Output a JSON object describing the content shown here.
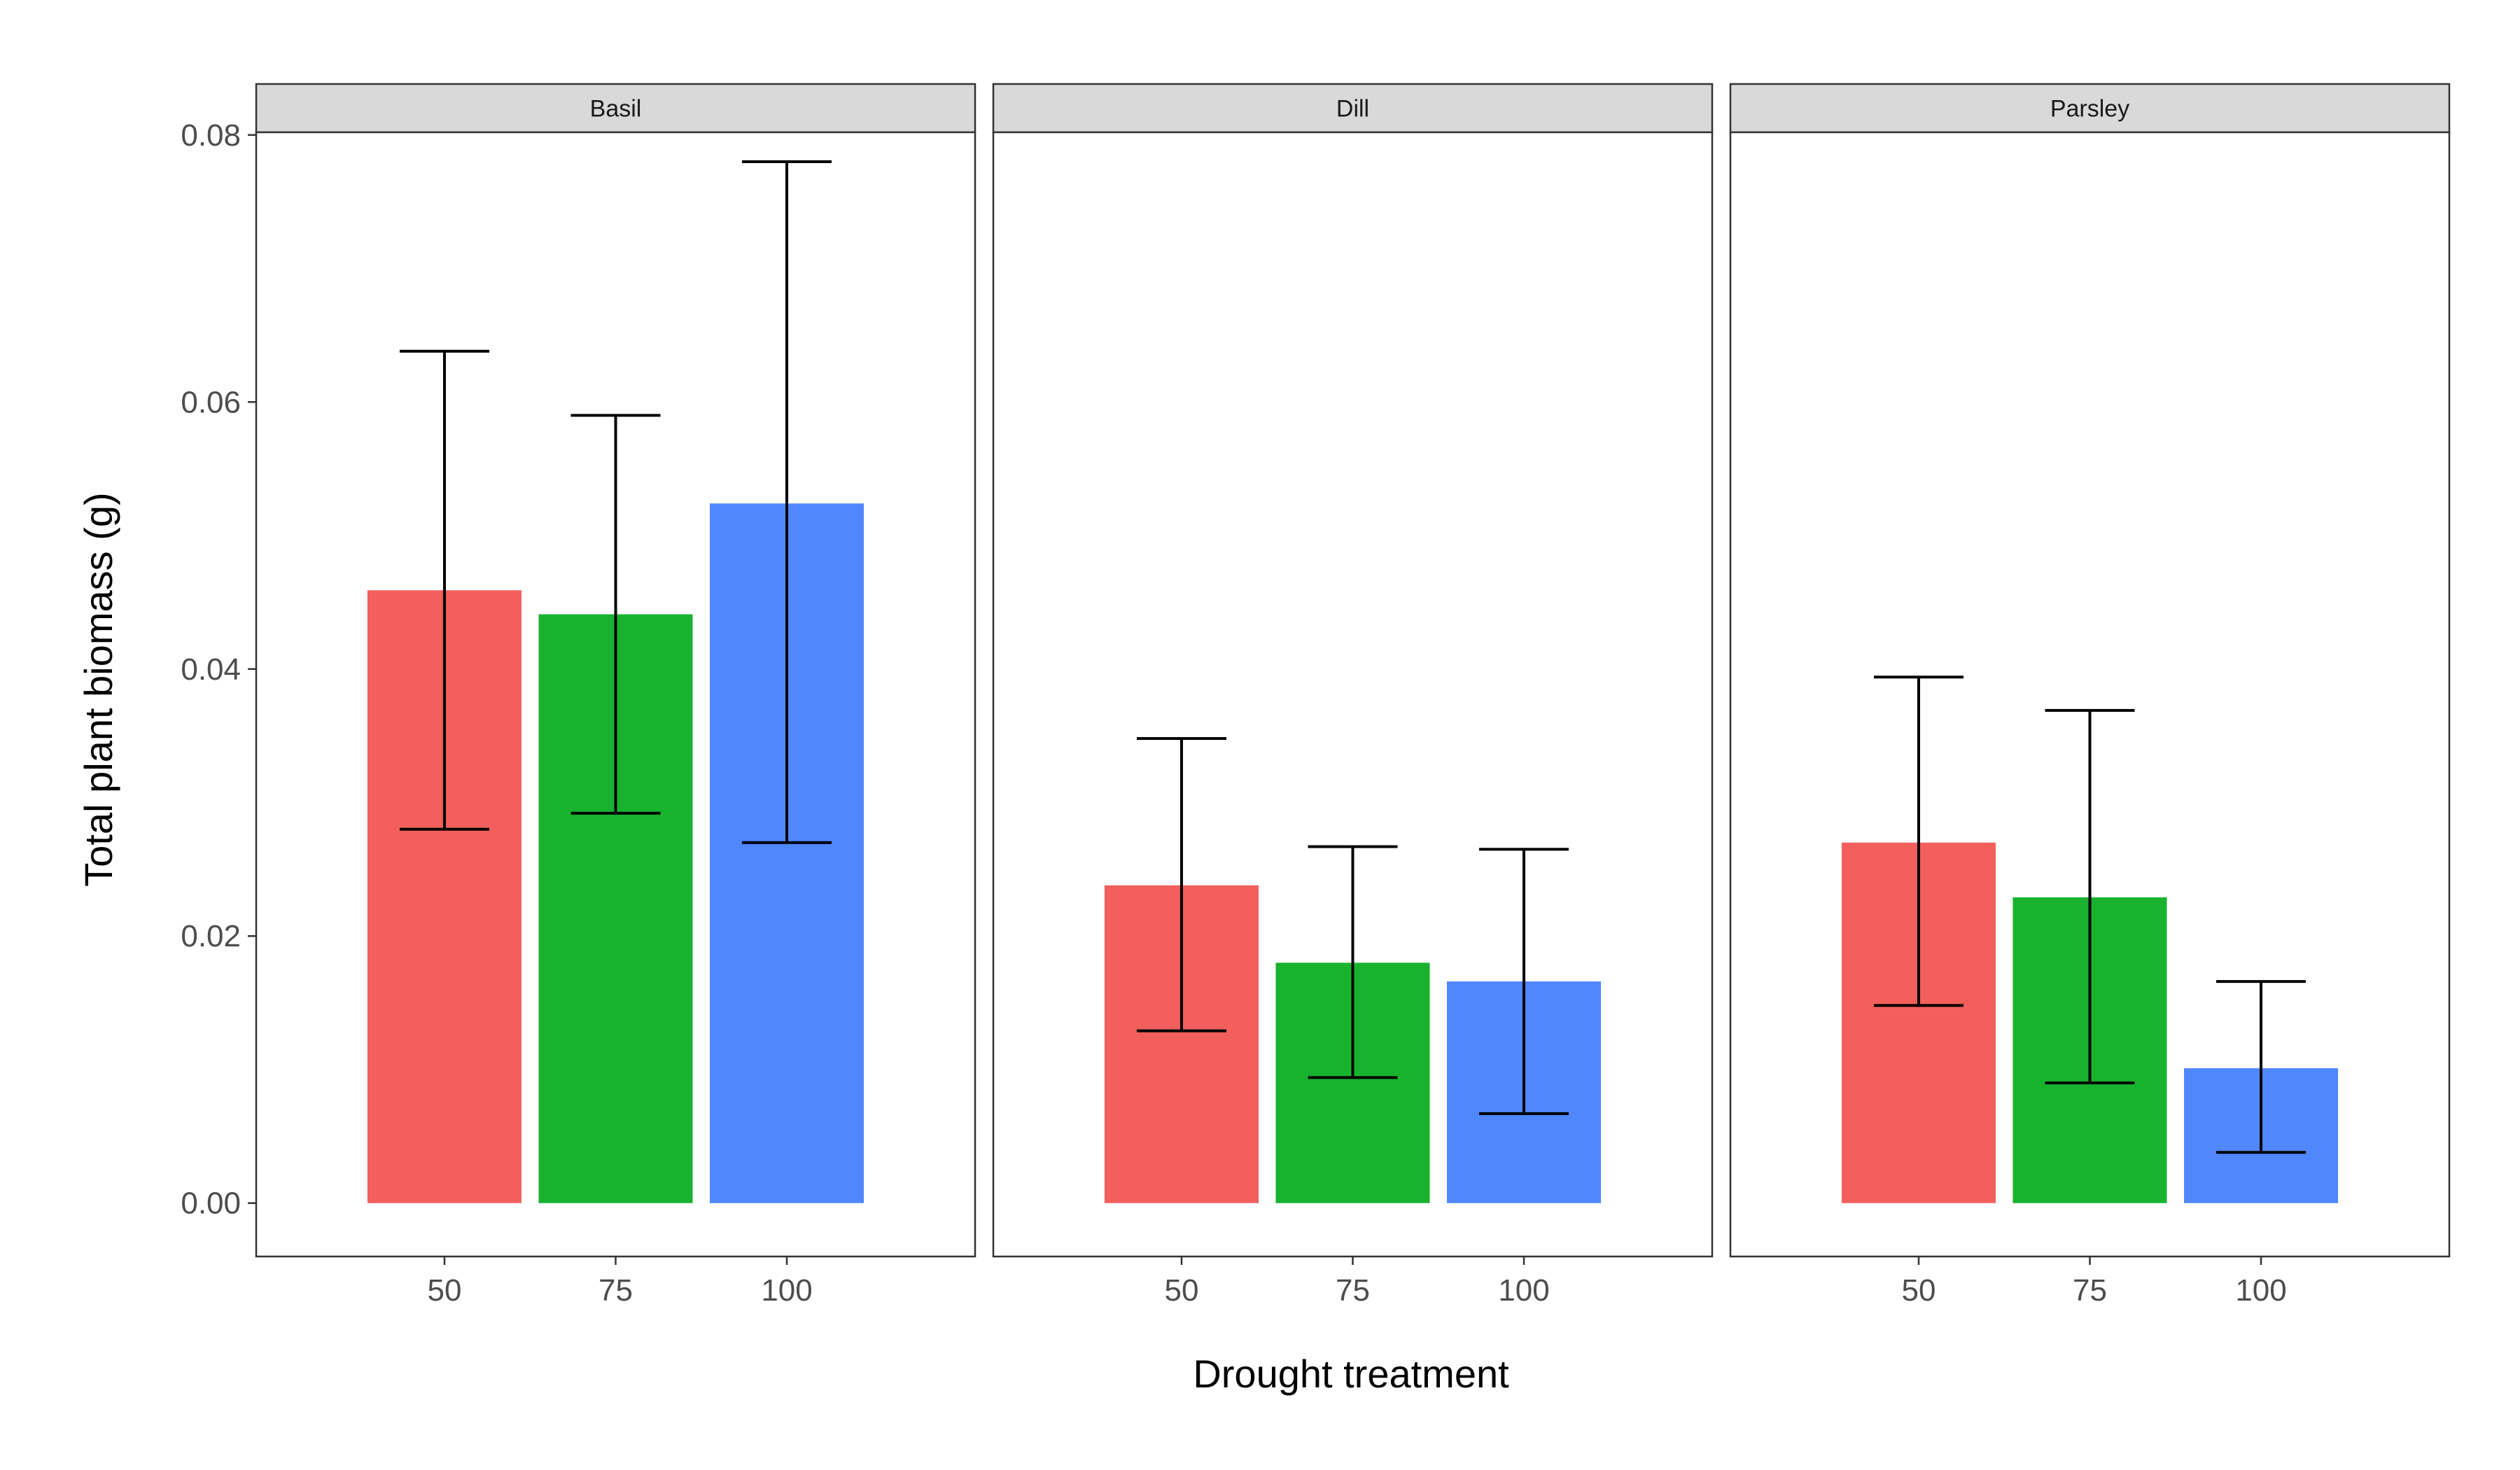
{
  "chart_data": {
    "type": "bar",
    "xlabel": "Drought treatment",
    "ylabel": "Total plant biomass (g)",
    "ylim": [
      -0.004,
      0.0802
    ],
    "yticks": [
      "0.00",
      "0.02",
      "0.04",
      "0.06",
      "0.08"
    ],
    "ytick_values": [
      0,
      0.02,
      0.04,
      0.06,
      0.08
    ],
    "categories": [
      "50",
      "75",
      "100"
    ],
    "colors": {
      "50": "#F35F5C",
      "75": "#19B22F",
      "100": "#5087FF"
    },
    "panels": [
      {
        "name": "Basil",
        "values": [
          0.0459,
          0.0441,
          0.0524
        ],
        "err_low": [
          0.028,
          0.0292,
          0.027
        ],
        "err_high": [
          0.0638,
          0.059,
          0.078
        ]
      },
      {
        "name": "Dill",
        "values": [
          0.0238,
          0.018,
          0.0166
        ],
        "err_low": [
          0.0129,
          0.0094,
          0.0067
        ],
        "err_high": [
          0.0348,
          0.0267,
          0.0265
        ]
      },
      {
        "name": "Parsley",
        "values": [
          0.027,
          0.0229,
          0.0101
        ],
        "err_low": [
          0.0148,
          0.009,
          0.0038
        ],
        "err_high": [
          0.0394,
          0.0369,
          0.0166
        ]
      }
    ]
  }
}
